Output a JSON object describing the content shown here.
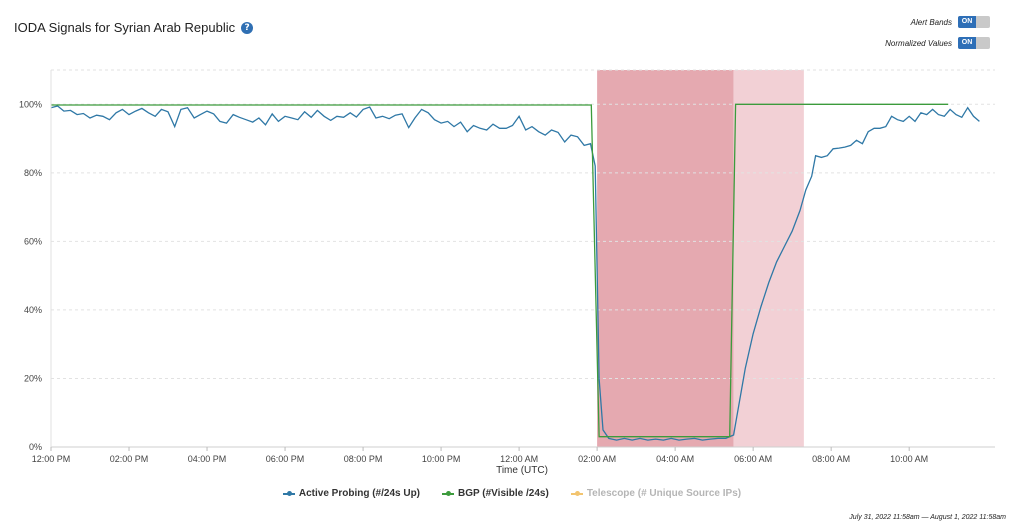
{
  "header": {
    "title": "IODA Signals for Syrian Arab Republic",
    "help_icon": "question-circle-icon"
  },
  "controls": {
    "alert_bands_label": "Alert Bands",
    "alert_bands_state": "ON",
    "normalized_values_label": "Normalized Values",
    "normalized_values_state": "ON"
  },
  "time_range": "July 31, 2022 11:58am — August 1, 2022 11:58am",
  "chart_data": {
    "type": "line",
    "xlabel": "Time (UTC)",
    "x_unit": "hours since 12:00 PM",
    "x_range": [
      0,
      24.2
    ],
    "ylim": [
      0,
      110
    ],
    "x_ticks": [
      {
        "label": "12:00 PM",
        "x": 0
      },
      {
        "label": "02:00 PM",
        "x": 2
      },
      {
        "label": "04:00 PM",
        "x": 4
      },
      {
        "label": "06:00 PM",
        "x": 6
      },
      {
        "label": "08:00 PM",
        "x": 8
      },
      {
        "label": "10:00 PM",
        "x": 10
      },
      {
        "label": "12:00 AM",
        "x": 12
      },
      {
        "label": "02:00 AM",
        "x": 14
      },
      {
        "label": "04:00 AM",
        "x": 16
      },
      {
        "label": "06:00 AM",
        "x": 18
      },
      {
        "label": "08:00 AM",
        "x": 20
      },
      {
        "label": "10:00 AM",
        "x": 22
      }
    ],
    "y_ticks": [
      {
        "label": "0%",
        "value": 0
      },
      {
        "label": "20%",
        "value": 20
      },
      {
        "label": "40%",
        "value": 40
      },
      {
        "label": "60%",
        "value": 60
      },
      {
        "label": "80%",
        "value": 80
      },
      {
        "label": "100%",
        "value": 100
      }
    ],
    "grid": true,
    "legend_position": "bottom-center",
    "alert_bands": [
      {
        "x_start": 14.0,
        "x_end": 17.5,
        "color": "#e5a9b0",
        "level": "critical"
      },
      {
        "x_start": 17.5,
        "x_end": 19.3,
        "color": "#f2d0d5",
        "level": "warning"
      }
    ],
    "series": [
      {
        "name": "Active Probing (#/24s Up)",
        "color": "#2f78a6",
        "points": [
          [
            0,
            99
          ],
          [
            0.17,
            99.5
          ],
          [
            0.33,
            98
          ],
          [
            0.5,
            98.2
          ],
          [
            0.67,
            97
          ],
          [
            0.83,
            97.3
          ],
          [
            1,
            96
          ],
          [
            1.17,
            96.8
          ],
          [
            1.33,
            96.5
          ],
          [
            1.5,
            95.5
          ],
          [
            1.67,
            97.5
          ],
          [
            1.83,
            98.5
          ],
          [
            2,
            97
          ],
          [
            2.17,
            98
          ],
          [
            2.33,
            98.8
          ],
          [
            2.5,
            97.5
          ],
          [
            2.67,
            96.5
          ],
          [
            2.83,
            98.5
          ],
          [
            3,
            97.8
          ],
          [
            3.17,
            93.5
          ],
          [
            3.33,
            98.5
          ],
          [
            3.5,
            99
          ],
          [
            3.67,
            96
          ],
          [
            3.83,
            97
          ],
          [
            4,
            98
          ],
          [
            4.17,
            97.2
          ],
          [
            4.33,
            95
          ],
          [
            4.5,
            94.5
          ],
          [
            4.67,
            97
          ],
          [
            4.83,
            96.2
          ],
          [
            5,
            95.5
          ],
          [
            5.17,
            94.8
          ],
          [
            5.33,
            96
          ],
          [
            5.5,
            94
          ],
          [
            5.67,
            97.2
          ],
          [
            5.83,
            95
          ],
          [
            6,
            96.5
          ],
          [
            6.17,
            96
          ],
          [
            6.33,
            95.5
          ],
          [
            6.5,
            97.8
          ],
          [
            6.67,
            96.2
          ],
          [
            6.83,
            98.2
          ],
          [
            7,
            96.5
          ],
          [
            7.17,
            95.3
          ],
          [
            7.33,
            96.5
          ],
          [
            7.5,
            96.2
          ],
          [
            7.67,
            97.5
          ],
          [
            7.83,
            96.3
          ],
          [
            8,
            98.5
          ],
          [
            8.17,
            99.2
          ],
          [
            8.33,
            96
          ],
          [
            8.5,
            96.5
          ],
          [
            8.67,
            95.8
          ],
          [
            8.83,
            96.8
          ],
          [
            9,
            97.2
          ],
          [
            9.17,
            93.2
          ],
          [
            9.33,
            96
          ],
          [
            9.5,
            98.5
          ],
          [
            9.67,
            97.5
          ],
          [
            9.83,
            95.5
          ],
          [
            10,
            94.5
          ],
          [
            10.17,
            95
          ],
          [
            10.33,
            93.5
          ],
          [
            10.5,
            94.8
          ],
          [
            10.67,
            92
          ],
          [
            10.83,
            93.8
          ],
          [
            11,
            93
          ],
          [
            11.17,
            92.5
          ],
          [
            11.33,
            94.2
          ],
          [
            11.5,
            93
          ],
          [
            11.67,
            93
          ],
          [
            11.83,
            93.8
          ],
          [
            12,
            96.5
          ],
          [
            12.17,
            92.5
          ],
          [
            12.33,
            93.5
          ],
          [
            12.5,
            92
          ],
          [
            12.67,
            91
          ],
          [
            12.83,
            92.5
          ],
          [
            13,
            91.8
          ],
          [
            13.17,
            89
          ],
          [
            13.33,
            91
          ],
          [
            13.5,
            90.5
          ],
          [
            13.67,
            88
          ],
          [
            13.83,
            88.5
          ],
          [
            13.95,
            82
          ],
          [
            14.05,
            20
          ],
          [
            14.15,
            5
          ],
          [
            14.3,
            2.5
          ],
          [
            14.5,
            2
          ],
          [
            14.7,
            2.5
          ],
          [
            14.9,
            2
          ],
          [
            15.1,
            2.5
          ],
          [
            15.3,
            2
          ],
          [
            15.5,
            2.3
          ],
          [
            15.7,
            2
          ],
          [
            15.9,
            2.5
          ],
          [
            16.1,
            2
          ],
          [
            16.3,
            2.3
          ],
          [
            16.5,
            2.5
          ],
          [
            16.7,
            2
          ],
          [
            16.9,
            2.3
          ],
          [
            17.1,
            2.5
          ],
          [
            17.3,
            2.5
          ],
          [
            17.5,
            3.5
          ],
          [
            17.6,
            10
          ],
          [
            17.8,
            23
          ],
          [
            18,
            33
          ],
          [
            18.2,
            41
          ],
          [
            18.4,
            48
          ],
          [
            18.6,
            54
          ],
          [
            18.8,
            58.5
          ],
          [
            19,
            63
          ],
          [
            19.2,
            69
          ],
          [
            19.35,
            75
          ],
          [
            19.5,
            79
          ],
          [
            19.6,
            85
          ],
          [
            19.75,
            84.5
          ],
          [
            19.9,
            85
          ],
          [
            20.05,
            87
          ],
          [
            20.2,
            87.2
          ],
          [
            20.35,
            87.5
          ],
          [
            20.5,
            88
          ],
          [
            20.65,
            89.5
          ],
          [
            20.8,
            88.5
          ],
          [
            20.95,
            92
          ],
          [
            21.1,
            93
          ],
          [
            21.25,
            93
          ],
          [
            21.4,
            93.5
          ],
          [
            21.55,
            96.5
          ],
          [
            21.7,
            95.5
          ],
          [
            21.85,
            95
          ],
          [
            22,
            96.5
          ],
          [
            22.15,
            95
          ],
          [
            22.3,
            97.5
          ],
          [
            22.45,
            97
          ],
          [
            22.6,
            98.5
          ],
          [
            22.75,
            97
          ],
          [
            22.9,
            96.5
          ],
          [
            23.05,
            98.5
          ],
          [
            23.2,
            97
          ],
          [
            23.35,
            96.2
          ],
          [
            23.5,
            99
          ],
          [
            23.65,
            96.5
          ],
          [
            23.8,
            95
          ]
        ]
      },
      {
        "name": "BGP (#Visible /24s)",
        "color": "#3c9b3c",
        "points": [
          [
            0,
            99.8
          ],
          [
            13.85,
            99.8
          ],
          [
            14.05,
            3
          ],
          [
            17.4,
            3
          ],
          [
            17.55,
            100
          ],
          [
            23,
            100
          ]
        ]
      },
      {
        "name": "Telescope (# Unique Source IPs)",
        "color": "#f2c46f",
        "points": []
      }
    ]
  }
}
